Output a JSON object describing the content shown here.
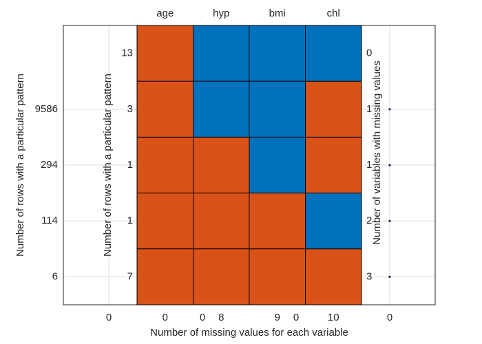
{
  "chart_data": {
    "type": "missing_pattern",
    "variables": [
      "age",
      "hyp",
      "bmi",
      "chl"
    ],
    "pattern": [
      [
        1,
        0,
        0,
        0
      ],
      [
        1,
        0,
        0,
        1
      ],
      [
        1,
        1,
        0,
        1
      ],
      [
        1,
        1,
        1,
        0
      ],
      [
        1,
        1,
        1,
        1
      ]
    ],
    "colors": [
      "#0072BD",
      "#D95319"
    ],
    "row_counts": [
      13,
      3,
      1,
      1,
      7
    ],
    "missing_per_row": [
      0,
      1,
      1,
      2,
      3
    ],
    "missing_per_variable": [
      0,
      8,
      9,
      10
    ],
    "left_ticks": [
      6,
      114,
      294,
      9586
    ],
    "outer_xticks": [
      0,
      0,
      0,
      0
    ],
    "ylabel": "Number of rows with a particular pattern",
    "inner_ylabel": "Number of rows with a particular pattern",
    "y2label": "Number of variables with missing values",
    "xlabel": "Number of missing values for each variable",
    "grid": true
  }
}
